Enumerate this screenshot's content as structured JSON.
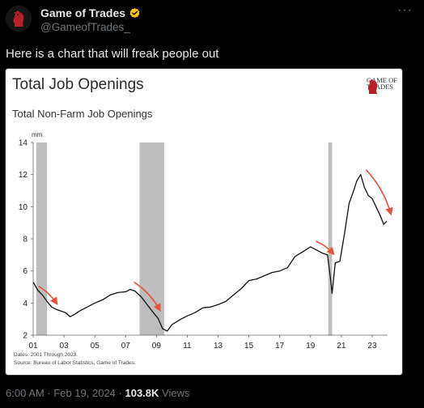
{
  "tweet": {
    "display_name": "Game of Trades",
    "handle": "@GameofTrades_",
    "text": "Here is a chart that will freak people out",
    "time": "6:00 AM",
    "date": "Feb 19, 2024",
    "views_count": "103.8K",
    "views_label": "Views",
    "icons": {
      "avatar": "horse-chess-knight-icon",
      "verified": "verified-badge-icon",
      "more": "more-options-icon"
    },
    "colors": {
      "verified": "#F5C518",
      "muted": "#71767B"
    }
  },
  "chart_data": {
    "type": "line",
    "title": "Total Job Openings",
    "subtitle": "Total Non-Farm Job Openings",
    "unit_label": "mm",
    "brand": {
      "line1": "GAME OF",
      "line2": "TRADES"
    },
    "note_dates": "Dates: 2001 Through 2023.",
    "note_source": "Source: Bureau of Labor Statistics, Game of Trades.",
    "xlim": [
      2001,
      2024
    ],
    "ylim": [
      2,
      14
    ],
    "x_ticks": [
      2001,
      2003,
      2005,
      2007,
      2009,
      2011,
      2013,
      2015,
      2017,
      2019,
      2021,
      2023
    ],
    "x_tick_labels": [
      "01",
      "03",
      "05",
      "07",
      "09",
      "11",
      "13",
      "15",
      "17",
      "19",
      "21",
      "23"
    ],
    "y_ticks": [
      2,
      4,
      6,
      8,
      10,
      12,
      14
    ],
    "y_tick_labels": [
      "2",
      "4",
      "6",
      "8",
      "10",
      "12",
      "14"
    ],
    "grid": false,
    "recessions": [
      [
        2001.2,
        2001.9
      ],
      [
        2007.9,
        2009.5
      ],
      [
        2020.15,
        2020.4
      ]
    ],
    "line_color": "#111111",
    "recession_color": "#BDBDBD",
    "arrow_color": "#E8513A",
    "series": [
      {
        "x": [
          2001.0,
          2001.3,
          2001.6,
          2001.9,
          2002.2,
          2002.5,
          2002.8,
          2003.1,
          2003.4,
          2003.7,
          2004.0,
          2004.5,
          2005.0,
          2005.5,
          2006.0,
          2006.5,
          2007.0,
          2007.3,
          2007.6,
          2008.0,
          2008.4,
          2008.8,
          2009.1,
          2009.4,
          2009.7,
          2010.0,
          2010.5,
          2011.0,
          2011.5,
          2012.0,
          2012.5,
          2013.0,
          2013.5,
          2014.0,
          2014.5,
          2015.0,
          2015.5,
          2016.0,
          2016.5,
          2017.0,
          2017.5,
          2018.0,
          2018.5,
          2019.0,
          2019.4,
          2019.8,
          2020.1,
          2020.3,
          2020.4,
          2020.6,
          2020.9,
          2021.2,
          2021.5,
          2021.8,
          2022.0,
          2022.25,
          2022.5,
          2022.75,
          2023.0,
          2023.25,
          2023.5,
          2023.75,
          2023.95
        ],
        "y": [
          5.3,
          4.8,
          4.5,
          4.1,
          3.75,
          3.6,
          3.5,
          3.4,
          3.15,
          3.3,
          3.5,
          3.75,
          4.0,
          4.2,
          4.5,
          4.65,
          4.7,
          4.85,
          4.75,
          4.4,
          3.9,
          3.4,
          3.05,
          2.4,
          2.25,
          2.65,
          2.95,
          3.2,
          3.4,
          3.7,
          3.75,
          3.9,
          4.1,
          4.5,
          4.9,
          5.4,
          5.5,
          5.7,
          5.9,
          6.0,
          6.2,
          6.9,
          7.2,
          7.5,
          7.3,
          7.1,
          7.0,
          5.5,
          4.6,
          6.5,
          6.6,
          8.3,
          10.2,
          11.0,
          11.6,
          12.0,
          11.2,
          10.7,
          10.5,
          10.0,
          9.5,
          8.9,
          9.1
        ]
      }
    ],
    "arrows": [
      {
        "x1": 2001.35,
        "y1": 5.05,
        "x2": 2002.5,
        "y2": 4.0
      },
      {
        "x1": 2007.55,
        "y1": 5.3,
        "x2": 2009.2,
        "y2": 3.6
      },
      {
        "x1": 2019.35,
        "y1": 7.85,
        "x2": 2020.45,
        "y2": 7.1
      },
      {
        "x1": 2022.6,
        "y1": 12.3,
        "x2": 2024.2,
        "y2": 9.6
      }
    ]
  }
}
